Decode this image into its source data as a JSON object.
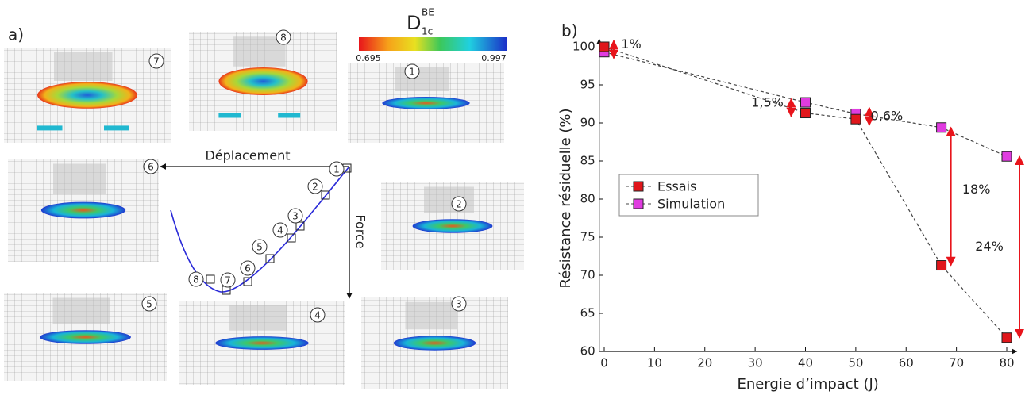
{
  "panel_a": {
    "label": "a)",
    "colorbar": {
      "symbol": "D",
      "superscript": "BE",
      "subscript": "1c",
      "min_label": "0.695",
      "max_label": "0.997"
    },
    "states": [
      "1",
      "2",
      "3",
      "4",
      "5",
      "6",
      "7",
      "8"
    ],
    "x_axis": "Déplacement",
    "y_axis": "Force"
  },
  "chart_data": {
    "type": "line",
    "panel_label": "b)",
    "xlabel": "Energie d’impact (J)",
    "ylabel": "Résistance résiduelle (%)",
    "x": [
      0,
      40,
      50,
      67,
      80
    ],
    "xlim": [
      -1,
      82
    ],
    "xticks": [
      0,
      10,
      20,
      30,
      40,
      50,
      60,
      70,
      80
    ],
    "ylim": [
      60,
      101
    ],
    "yticks": [
      60,
      65,
      70,
      75,
      80,
      85,
      90,
      95,
      100
    ],
    "series": [
      {
        "name": "Essais",
        "color": "#e0161b",
        "values": [
          100,
          91.3,
          90.5,
          71.3,
          61.8
        ]
      },
      {
        "name": "Simulation",
        "color": "#e03ce0",
        "values": [
          99.3,
          92.7,
          91.2,
          89.4,
          85.6
        ]
      }
    ],
    "annotations": [
      "1%",
      "1,5%",
      "0,6%",
      "18%",
      "24%"
    ],
    "annotation_color": "#e8141b",
    "line_color": "#444",
    "line_style": "dashed",
    "legend": "center left",
    "grid": false
  }
}
